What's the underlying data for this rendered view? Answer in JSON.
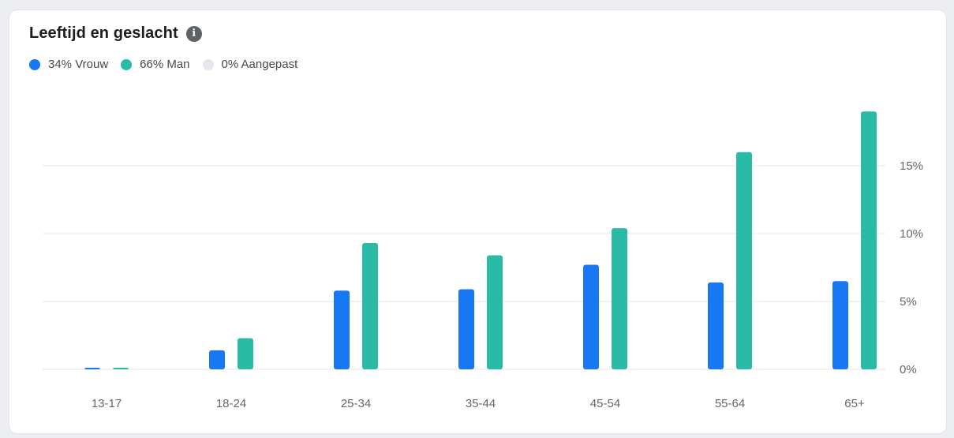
{
  "title": "Leeftijd en geslacht",
  "legend": [
    {
      "label": "34% Vrouw",
      "color": "#1877f2"
    },
    {
      "label": "66% Man",
      "color": "#2abba7"
    },
    {
      "label": "0% Aangepast",
      "color": "#e4e6eb"
    }
  ],
  "chart_data": {
    "type": "bar",
    "title": "Leeftijd en geslacht",
    "categories": [
      "13-17",
      "18-24",
      "25-34",
      "35-44",
      "45-54",
      "55-64",
      "65+"
    ],
    "series": [
      {
        "name": "Vrouw",
        "color": "#1877f2",
        "values": [
          0.1,
          1.4,
          5.8,
          5.9,
          7.7,
          6.4,
          6.5
        ]
      },
      {
        "name": "Man",
        "color": "#2abba7",
        "values": [
          0.1,
          2.3,
          9.3,
          8.4,
          10.4,
          16.0,
          19.0
        ]
      },
      {
        "name": "Aangepast",
        "color": "#e4e6eb",
        "values": [
          0,
          0,
          0,
          0,
          0,
          0,
          0
        ]
      }
    ],
    "yticks": [
      "0%",
      "5%",
      "10%",
      "15%"
    ],
    "ylim": [
      0,
      19.5
    ],
    "grid": true,
    "legend_position": "top-left"
  }
}
